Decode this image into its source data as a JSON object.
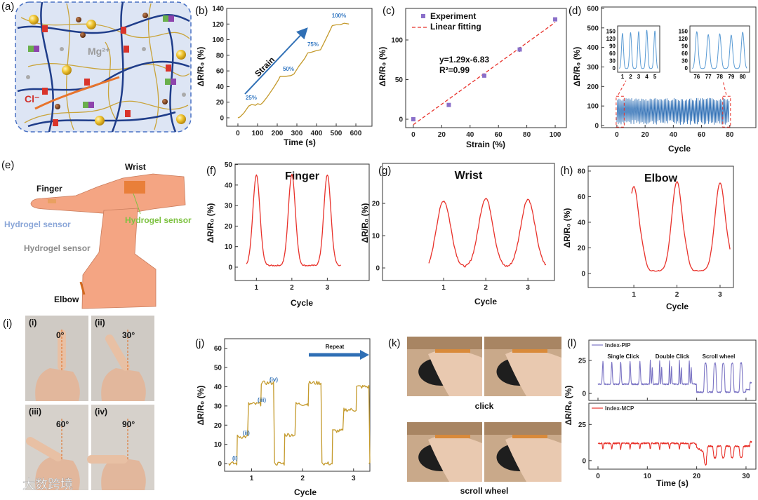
{
  "panel_labels": [
    "(a)",
    "(b)",
    "(c)",
    "(d)",
    "(e)",
    "(f)",
    "(g)",
    "(h)",
    "(i)",
    "(j)",
    "(k)",
    "(l)"
  ],
  "illustration_a": {
    "mg_label": "Mg²⁺",
    "cl_label": "Cl⁻"
  },
  "illustration_e": {
    "wrist": "Wrist",
    "finger": "Finger",
    "sensor_finger": "Hydrogel sensor",
    "sensor_wrist": "Hydrogel sensor",
    "sensor_elbow": "Hydrogel sensor",
    "elbow": "Elbow"
  },
  "photos_i": {
    "labels": [
      "(i)",
      "(ii)",
      "(iii)",
      "(iv)"
    ],
    "angles": [
      "0°",
      "30°",
      "60°",
      "90°"
    ]
  },
  "photos_k": {
    "click": "click",
    "scroll": "scroll wheel"
  },
  "watermark": "大数跨境",
  "colors": {
    "gold": "#c49a2c",
    "blue": "#2f6fb5",
    "red": "#e8312a",
    "purple": "#7b74c4",
    "orange": "#e06a1e"
  },
  "chart_data": [
    {
      "id": "b",
      "type": "line",
      "xlabel": "Time (s)",
      "ylabel": "ΔR/R₀ (%)",
      "xlim": [
        -57,
        682
      ],
      "ylim": [
        -10.8,
        140
      ],
      "xticks": [
        0,
        100,
        200,
        300,
        400,
        500,
        600
      ],
      "yticks": [
        0,
        20,
        40,
        60,
        80,
        100,
        120,
        140
      ],
      "series": [
        {
          "name": "ΔR/R₀",
          "color": "#c49a2c",
          "points": [
            [
              0,
              0
            ],
            [
              10,
              1
            ],
            [
              30,
              6
            ],
            [
              55,
              15
            ],
            [
              70,
              17
            ],
            [
              90,
              16
            ],
            [
              100,
              18
            ],
            [
              115,
              17
            ],
            [
              125,
              19
            ],
            [
              150,
              27
            ],
            [
              180,
              38
            ],
            [
              205,
              48
            ],
            [
              215,
              53
            ],
            [
              240,
              53
            ],
            [
              270,
              54
            ],
            [
              285,
              56
            ],
            [
              310,
              66
            ],
            [
              340,
              76
            ],
            [
              355,
              83
            ],
            [
              375,
              84
            ],
            [
              400,
              86
            ],
            [
              420,
              87
            ],
            [
              440,
              97
            ],
            [
              465,
              110
            ],
            [
              480,
              118
            ],
            [
              500,
              119
            ],
            [
              520,
              119
            ],
            [
              540,
              121
            ],
            [
              565,
              120
            ]
          ]
        }
      ],
      "annotations": [
        "25%",
        "50%",
        "75%",
        "100%",
        "Strain"
      ]
    },
    {
      "id": "c",
      "type": "scatter",
      "xlabel": "Strain (%)",
      "ylabel": "ΔR/R₀ (%)",
      "xlim": [
        -5.4,
        107.9
      ],
      "ylim": [
        -10.6,
        139.8
      ],
      "xticks": [
        0,
        20,
        40,
        60,
        80,
        100
      ],
      "yticks": [
        0,
        50,
        100
      ],
      "x": [
        0,
        25,
        50,
        75,
        100
      ],
      "y": [
        0,
        18,
        55,
        88,
        126
      ],
      "yerr": [
        1,
        2,
        2,
        3,
        2
      ],
      "fit": {
        "slope": 1.29,
        "intercept": -6.83
      },
      "legend": [
        "Experiment",
        "Linear fitting"
      ],
      "legend_position": "top-left",
      "annotations": [
        "y=1.29x-6.83",
        "R²=0.99"
      ]
    },
    {
      "id": "d",
      "type": "line",
      "xlabel": "Cycle",
      "ylabel": "ΔR/R₀ (%)",
      "xlim": [
        -10.9,
        98.5
      ],
      "ylim": [
        -10.8,
        607
      ],
      "xticks": [
        0,
        20,
        40,
        60,
        80
      ],
      "yticks": [
        0,
        100,
        200,
        300,
        400,
        500,
        600
      ],
      "cycles": 80,
      "peak": 140,
      "trough": 5,
      "insets": [
        {
          "xticks": [
            1,
            2,
            3,
            4,
            5
          ],
          "yticks": [
            0,
            30,
            60,
            90,
            120,
            150
          ],
          "peaks": [
            145,
            148,
            152,
            158,
            155
          ]
        },
        {
          "xticks": [
            76,
            77,
            78,
            79,
            80
          ],
          "yticks": [
            0,
            30,
            60,
            90,
            120,
            150
          ],
          "peaks": [
            152,
            140,
            143,
            138,
            150
          ]
        }
      ]
    },
    {
      "id": "f",
      "type": "line",
      "title": "Finger",
      "xlabel": "Cycle",
      "ylabel": "ΔR/R₀ (%)",
      "xlim": [
        0.4,
        4.18
      ],
      "ylim": [
        -6.5,
        50.2
      ],
      "xticks": [
        1,
        2,
        3
      ],
      "yticks": [
        0,
        10,
        20,
        30,
        40,
        50
      ],
      "peaks": [
        44,
        44.5,
        44.3
      ],
      "baseline": 0.8,
      "range": [
        0.72,
        3.4
      ],
      "width": 0.14
    },
    {
      "id": "g",
      "type": "line",
      "title": "Wrist",
      "xlabel": "Cycle",
      "ylabel": "ΔR/R₀ (%)",
      "xlim": [
        -0.45,
        3.63
      ],
      "ylim": [
        -3.9,
        32.4
      ],
      "xticks": [
        1,
        2,
        3
      ],
      "yticks": [
        0,
        10,
        20
      ],
      "peaks": [
        20.8,
        21.6,
        21.3
      ],
      "baseline": 0,
      "range": [
        0.65,
        3.45
      ],
      "width": 0.24
    },
    {
      "id": "h",
      "type": "line",
      "title": "Elbow",
      "xlabel": "Cycle",
      "ylabel": "ΔR/R₀ (%)",
      "xlim": [
        -0.06,
        3.31
      ],
      "ylim": [
        -11,
        83.8
      ],
      "xticks": [
        1,
        2,
        3
      ],
      "yticks": [
        0,
        20,
        40,
        60,
        80
      ],
      "peaks": [
        66,
        70,
        69
      ],
      "baseline": 2,
      "range": [
        0.95,
        3.25
      ],
      "width": 0.17
    },
    {
      "id": "j",
      "type": "line",
      "xlabel": "Cycle",
      "ylabel": "ΔR/R₀ (%)",
      "xlim": [
        0.47,
        3.32
      ],
      "ylim": [
        -4,
        65
      ],
      "xticks": [
        1,
        2,
        3
      ],
      "yticks": [
        0,
        10,
        20,
        30,
        40,
        50,
        60
      ],
      "stage_labels": [
        "(i)",
        "(ii)",
        "(iii)",
        "(iv)"
      ],
      "arrow_label": "Repeat",
      "cycles": [
        {
          "start": 0.55,
          "levels": [
            0,
            14,
            31,
            42
          ]
        },
        {
          "start": 1.48,
          "levels": [
            0,
            15,
            31,
            42
          ]
        },
        {
          "start": 2.42,
          "levels": [
            0,
            17,
            28,
            40
          ]
        }
      ]
    },
    {
      "id": "l",
      "type": "line",
      "xlabel": "Time (s)",
      "ylabel": "ΔR/R₀ (%)",
      "xlim": [
        -1.85,
        32
      ],
      "xticks": [
        0,
        10,
        20,
        30
      ],
      "panels": [
        {
          "name": "Index-PIP",
          "color": "#7b74c4",
          "ylim": [
            -5.3,
            40.4
          ],
          "yticks": [
            0,
            25
          ],
          "annotations": [
            "Single Click",
            "Double Click",
            "Scroll wheel"
          ]
        },
        {
          "name": "Index-MCP",
          "color": "#e8312a",
          "ylim": [
            -5.9,
            39.7
          ],
          "yticks": [
            0,
            25
          ]
        }
      ],
      "single_click_times": [
        1,
        2.8,
        4.6,
        6.5,
        8.5
      ],
      "double_click_times": [
        10.6,
        12.5,
        14.5,
        16.5,
        18.5
      ],
      "scroll_times": [
        21.8,
        23.7,
        25.4,
        27.2,
        29
      ]
    }
  ]
}
